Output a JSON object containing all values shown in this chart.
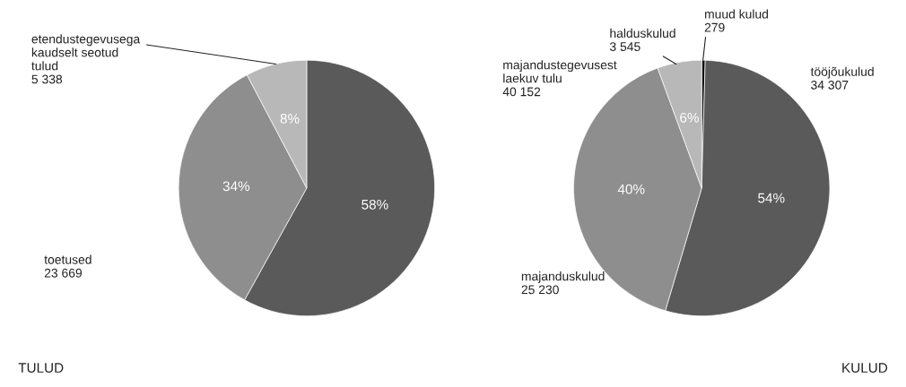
{
  "chart_data": [
    {
      "type": "pie",
      "title": "TULUD",
      "categories": [
        "majandustegevusest\nlaekuv tulu",
        "toetused",
        "etendustegevusega\nkaudselt seotud\ntulud"
      ],
      "values": [
        40152,
        23669,
        5338
      ],
      "value_labels": [
        "40 152",
        "23 669",
        "5 338"
      ],
      "colors": [
        "#5a5a5a",
        "#8e8e8e",
        "#b8b8b8"
      ],
      "annotations": [
        "58%",
        "34%",
        "8%"
      ]
    },
    {
      "type": "pie",
      "title": "KULUD",
      "categories": [
        "muud kulud",
        "tööjõukulud",
        "majanduskulud",
        "halduskulud"
      ],
      "values": [
        279,
        34307,
        25230,
        3545
      ],
      "value_labels": [
        "279",
        "34 307",
        "25 230",
        "3 545"
      ],
      "colors": [
        "#111111",
        "#5a5a5a",
        "#8e8e8e",
        "#b8b8b8"
      ],
      "annotations": [
        null,
        "54%",
        "40%",
        "6%"
      ]
    }
  ]
}
